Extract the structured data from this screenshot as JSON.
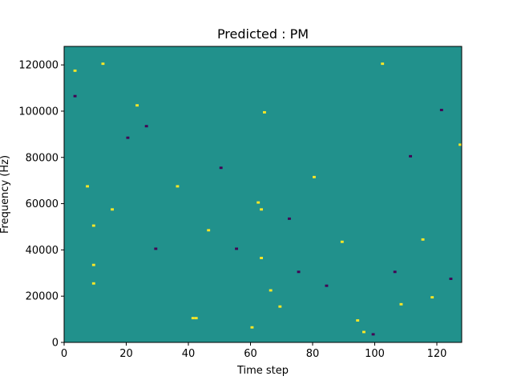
{
  "chart_data": {
    "type": "heatmap",
    "title": "Predicted : PM",
    "xlabel": "Time step",
    "ylabel": "Frequency (Hz)",
    "xlim": [
      0,
      128
    ],
    "ylim": [
      0,
      128000
    ],
    "x_ticks": [
      0,
      20,
      40,
      60,
      80,
      100,
      120
    ],
    "y_ticks": [
      0,
      20000,
      40000,
      60000,
      80000,
      100000,
      120000
    ],
    "x_tick_labels": [
      "0",
      "20",
      "40",
      "60",
      "80",
      "100",
      "120"
    ],
    "y_tick_labels": [
      "0",
      "20000",
      "40000",
      "60000",
      "80000",
      "100000",
      "120000"
    ],
    "grid": false,
    "legend": "none",
    "rows": 128,
    "row_height_hz": 1000,
    "background_value": 0,
    "colors": {
      "background": "#21918c",
      "high": "#fde725",
      "low": "#440154"
    },
    "cells": [
      {
        "t": 3,
        "f": 117000,
        "v": 1
      },
      {
        "t": 3,
        "f": 106000,
        "v": -1
      },
      {
        "t": 7,
        "f": 67000,
        "v": 1
      },
      {
        "t": 9,
        "f": 50000,
        "v": 1
      },
      {
        "t": 9,
        "f": 33000,
        "v": 1
      },
      {
        "t": 9,
        "f": 25000,
        "v": 1
      },
      {
        "t": 12,
        "f": 120000,
        "v": 1
      },
      {
        "t": 15,
        "f": 57000,
        "v": 1
      },
      {
        "t": 20,
        "f": 88000,
        "v": -1
      },
      {
        "t": 23,
        "f": 102000,
        "v": 1
      },
      {
        "t": 26,
        "f": 93000,
        "v": -1
      },
      {
        "t": 29,
        "f": 40000,
        "v": -1
      },
      {
        "t": 36,
        "f": 67000,
        "v": 1
      },
      {
        "t": 41,
        "f": 10000,
        "v": 1
      },
      {
        "t": 42,
        "f": 10000,
        "v": 1
      },
      {
        "t": 46,
        "f": 48000,
        "v": 1
      },
      {
        "t": 50,
        "f": 75000,
        "v": -1
      },
      {
        "t": 55,
        "f": 40000,
        "v": -1
      },
      {
        "t": 60,
        "f": 6000,
        "v": 1
      },
      {
        "t": 62,
        "f": 60000,
        "v": 1
      },
      {
        "t": 63,
        "f": 57000,
        "v": 1
      },
      {
        "t": 63,
        "f": 36000,
        "v": 1
      },
      {
        "t": 64,
        "f": 99000,
        "v": 1
      },
      {
        "t": 66,
        "f": 22000,
        "v": 1
      },
      {
        "t": 69,
        "f": 15000,
        "v": 1
      },
      {
        "t": 72,
        "f": 53000,
        "v": -1
      },
      {
        "t": 75,
        "f": 30000,
        "v": -1
      },
      {
        "t": 80,
        "f": 71000,
        "v": 1
      },
      {
        "t": 84,
        "f": 24000,
        "v": -1
      },
      {
        "t": 89,
        "f": 43000,
        "v": 1
      },
      {
        "t": 94,
        "f": 9000,
        "v": 1
      },
      {
        "t": 96,
        "f": 4000,
        "v": 1
      },
      {
        "t": 99,
        "f": 3000,
        "v": -1
      },
      {
        "t": 102,
        "f": 120000,
        "v": 1
      },
      {
        "t": 106,
        "f": 30000,
        "v": -1
      },
      {
        "t": 108,
        "f": 16000,
        "v": 1
      },
      {
        "t": 111,
        "f": 80000,
        "v": -1
      },
      {
        "t": 115,
        "f": 44000,
        "v": 1
      },
      {
        "t": 118,
        "f": 19000,
        "v": 1
      },
      {
        "t": 121,
        "f": 100000,
        "v": -1
      },
      {
        "t": 124,
        "f": 27000,
        "v": -1
      },
      {
        "t": 127,
        "f": 85000,
        "v": 1
      }
    ]
  }
}
